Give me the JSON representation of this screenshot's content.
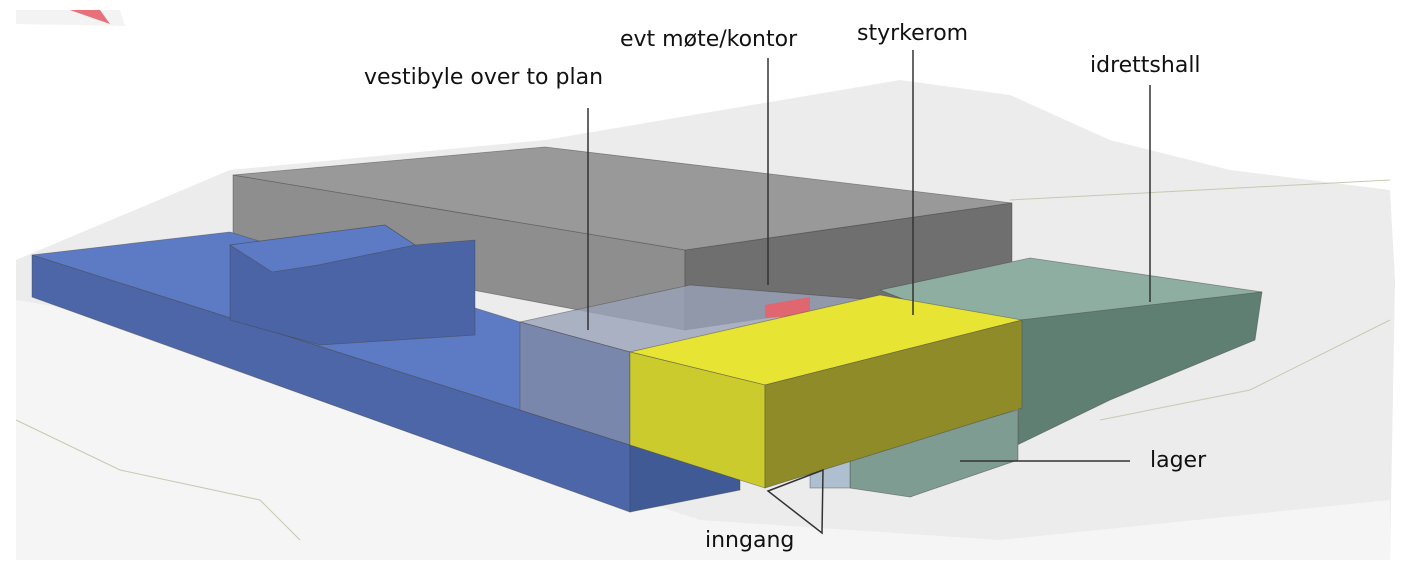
{
  "labels": [
    {
      "text": "vestibyle over to plan"
    },
    {
      "text": "evt møte/kontor"
    },
    {
      "text": "styrkerom"
    },
    {
      "text": "idrettshall"
    },
    {
      "text": "lager"
    },
    {
      "text": "inngang"
    }
  ]
}
